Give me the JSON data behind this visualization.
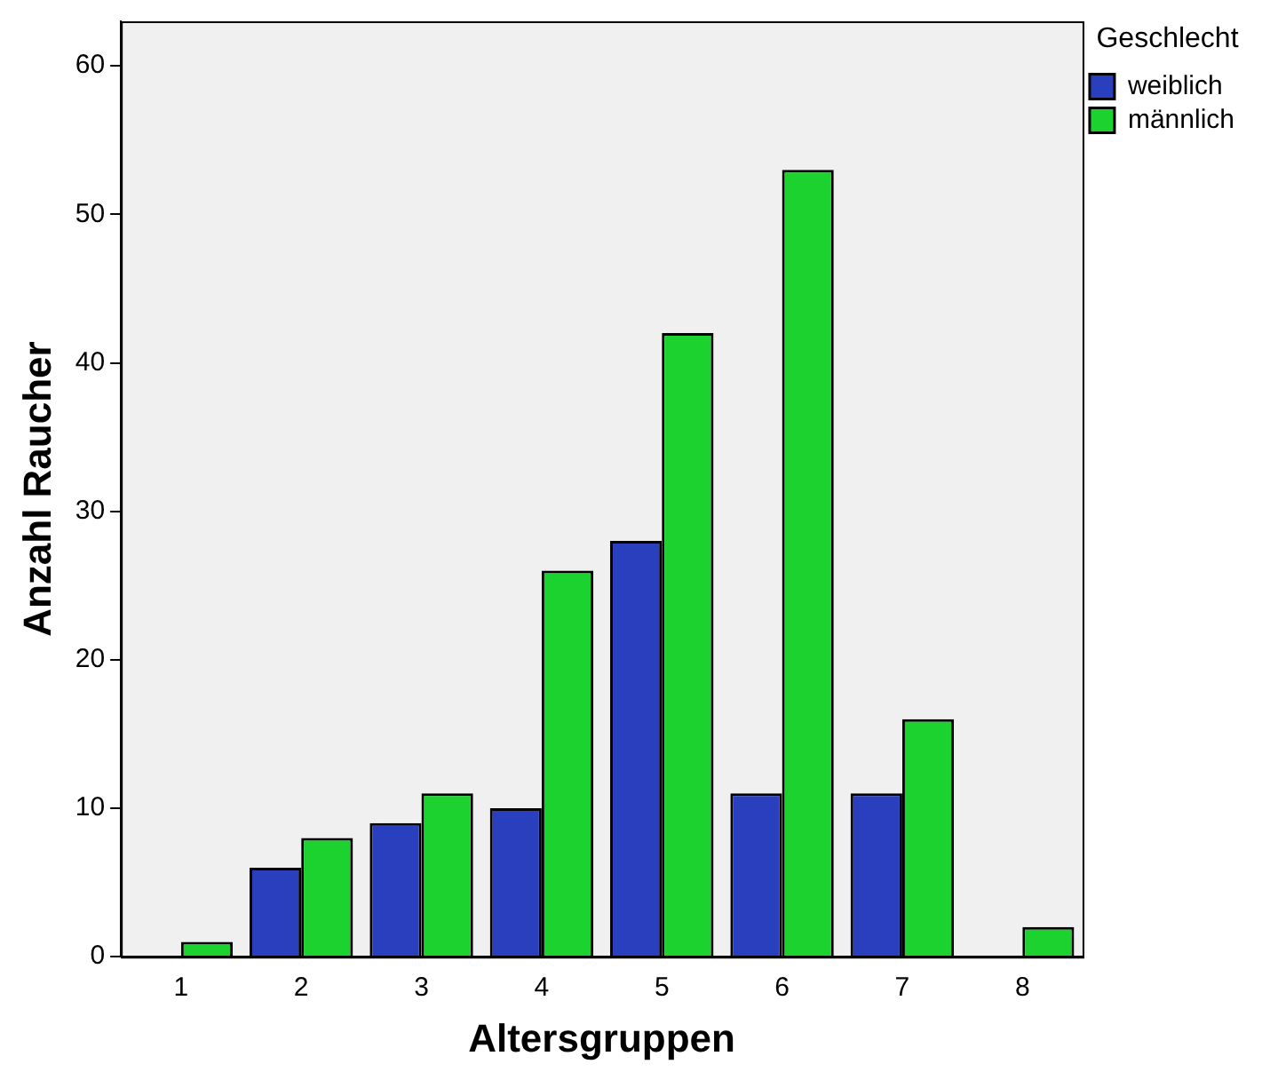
{
  "chart_data": {
    "type": "bar",
    "xlabel": "Altersgruppen",
    "ylabel": "Anzahl Raucher",
    "legend_title": "Geschlecht",
    "legend": "top right",
    "categories": [
      "1",
      "2",
      "3",
      "4",
      "5",
      "6",
      "7",
      "8"
    ],
    "series": [
      {
        "name": "weiblich",
        "color": "#2a3fbd",
        "values": [
          0,
          6,
          9,
          10,
          28,
          11,
          11,
          0
        ]
      },
      {
        "name": "männlich",
        "color": "#1bd22f",
        "values": [
          1,
          8,
          11,
          26,
          42,
          53,
          16,
          2
        ]
      }
    ],
    "ylim": [
      0,
      63
    ],
    "yticks": [
      0,
      10,
      20,
      30,
      40,
      50,
      60
    ],
    "grid": false
  }
}
